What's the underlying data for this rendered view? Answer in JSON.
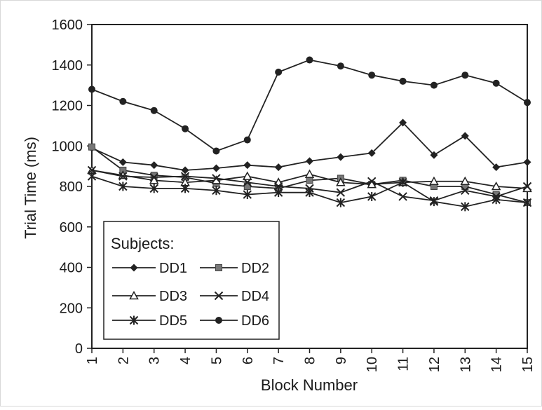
{
  "chart_data": {
    "type": "line",
    "title": "",
    "xlabel": "Block Number",
    "ylabel": "Trial Time (ms)",
    "x": [
      1,
      2,
      3,
      4,
      5,
      6,
      7,
      8,
      9,
      10,
      11,
      12,
      13,
      14,
      15
    ],
    "x_ticks": [
      "1",
      "2",
      "3",
      "4",
      "5",
      "6",
      "7",
      "8",
      "9",
      "10",
      "11",
      "12",
      "13",
      "14",
      "15"
    ],
    "xlim": [
      1,
      15
    ],
    "ylim": [
      0,
      1600
    ],
    "y_ticks": [
      0,
      200,
      400,
      600,
      800,
      1000,
      1200,
      1400,
      1600
    ],
    "grid": false,
    "legend": {
      "title": "Subjects:",
      "placement": "bottom-left"
    },
    "series": [
      {
        "name": "DD1",
        "marker": "diamond",
        "values": [
          990,
          920,
          905,
          880,
          890,
          905,
          895,
          925,
          945,
          965,
          1115,
          955,
          1050,
          895,
          920
        ]
      },
      {
        "name": "DD2",
        "marker": "square",
        "values": [
          995,
          880,
          855,
          845,
          815,
          800,
          790,
          830,
          840,
          810,
          830,
          800,
          800,
          760,
          720
        ]
      },
      {
        "name": "DD3",
        "marker": "triangle",
        "values": [
          880,
          855,
          830,
          820,
          830,
          850,
          820,
          860,
          820,
          810,
          820,
          825,
          825,
          800,
          790
        ]
      },
      {
        "name": "DD4",
        "marker": "x",
        "values": [
          880,
          850,
          845,
          850,
          840,
          820,
          800,
          790,
          770,
          825,
          750,
          730,
          780,
          750,
          800
        ]
      },
      {
        "name": "DD5",
        "marker": "star",
        "values": [
          850,
          800,
          790,
          790,
          780,
          760,
          770,
          770,
          720,
          750,
          820,
          725,
          700,
          735,
          720
        ]
      },
      {
        "name": "DD6",
        "marker": "circle",
        "values": [
          1280,
          1220,
          1175,
          1085,
          975,
          1030,
          1365,
          1425,
          1395,
          1350,
          1320,
          1300,
          1350,
          1310,
          1215
        ]
      }
    ]
  }
}
